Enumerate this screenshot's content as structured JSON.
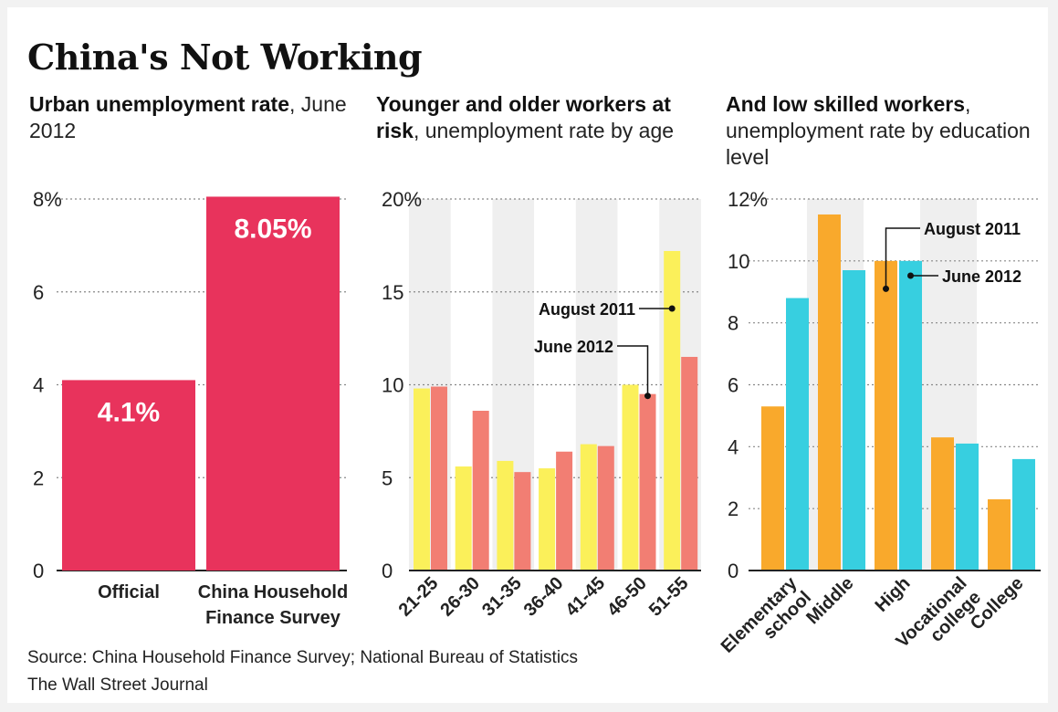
{
  "title": "China's Not Working",
  "panels": [
    {
      "subtitle_bold": "Urban unemployment rate",
      "subtitle_rest": ", June 2012"
    },
    {
      "subtitle_bold": "Younger and older workers at risk",
      "subtitle_rest": ", unemployment rate by age"
    },
    {
      "subtitle_bold": "And low skilled workers",
      "subtitle_rest": ", unemployment rate by education level"
    }
  ],
  "source": "Source: China Household Finance Survey; National Bureau of Statistics",
  "credit": "The Wall Street Journal",
  "colors": {
    "pink": "#e8335c",
    "yellow": "#fbf05a",
    "salmon": "#f27e73",
    "orange": "#f9a92c",
    "cyan": "#37cfe0",
    "stripe": "#efefef"
  },
  "chart_data": [
    {
      "type": "bar",
      "categories": [
        "Official",
        "China Household\nFinance Survey"
      ],
      "values": [
        4.1,
        8.05
      ],
      "data_labels": [
        "4.1%",
        "8.05%"
      ],
      "ylim": [
        0,
        8
      ],
      "yticks": [
        0,
        2,
        4,
        6,
        8
      ],
      "ytick_labels": [
        "0",
        "2",
        "4",
        "6",
        "8%"
      ],
      "grid": true
    },
    {
      "type": "bar",
      "categories": [
        "21-25",
        "26-30",
        "31-35",
        "36-40",
        "41-45",
        "46-50",
        "51-55"
      ],
      "series": [
        {
          "name": "August 2011",
          "values": [
            9.8,
            5.6,
            5.9,
            5.5,
            6.8,
            10.0,
            17.2
          ]
        },
        {
          "name": "June 2012",
          "values": [
            9.9,
            8.6,
            5.3,
            6.4,
            6.7,
            9.5,
            11.5
          ]
        }
      ],
      "ylim": [
        0,
        20
      ],
      "yticks": [
        0,
        5,
        10,
        15,
        20
      ],
      "ytick_labels": [
        "0",
        "5",
        "10",
        "15",
        "20%"
      ],
      "grid": true,
      "annotations": [
        "August 2011",
        "June 2012"
      ]
    },
    {
      "type": "bar",
      "categories": [
        "Elementary school",
        "Middle",
        "High",
        "Vocational college",
        "College"
      ],
      "series": [
        {
          "name": "August 2011",
          "values": [
            5.3,
            11.5,
            10.0,
            4.3,
            2.3
          ]
        },
        {
          "name": "June 2012",
          "values": [
            8.8,
            9.7,
            10.0,
            4.1,
            3.6
          ]
        }
      ],
      "ylim": [
        0,
        12
      ],
      "yticks": [
        0,
        2,
        4,
        6,
        8,
        10,
        12
      ],
      "ytick_labels": [
        "0",
        "2",
        "4",
        "6",
        "8",
        "10",
        "12%"
      ],
      "grid": true,
      "annotations": [
        "August 2011",
        "June 2012"
      ]
    }
  ]
}
